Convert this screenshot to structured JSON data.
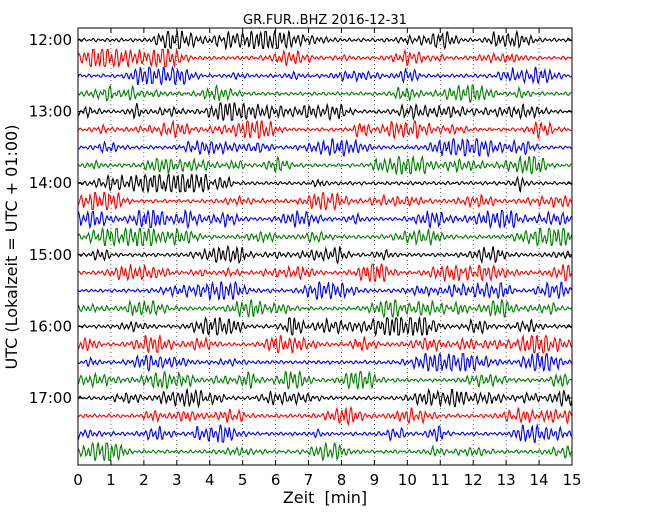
{
  "chart_data": {
    "type": "line",
    "title": "GR.FUR..BHZ 2016-12-31",
    "xlabel": "Zeit  [min]",
    "ylabel": "UTC (Lokalzeit = UTC + 01:00)",
    "xlim": [
      0,
      15
    ],
    "x_ticks": [
      "0",
      "1",
      "2",
      "3",
      "4",
      "5",
      "6",
      "7",
      "8",
      "9",
      "10",
      "11",
      "12",
      "13",
      "14",
      "15"
    ],
    "y_ticks": [
      "12:00",
      "13:00",
      "14:00",
      "15:00",
      "16:00",
      "17:00"
    ],
    "traces_per_hour": 4,
    "trace_count": 24,
    "trace_colors": [
      "#000000",
      "#ff0000",
      "#0000ff",
      "#008000"
    ],
    "grid": "vertical dotted lines at each minute"
  }
}
